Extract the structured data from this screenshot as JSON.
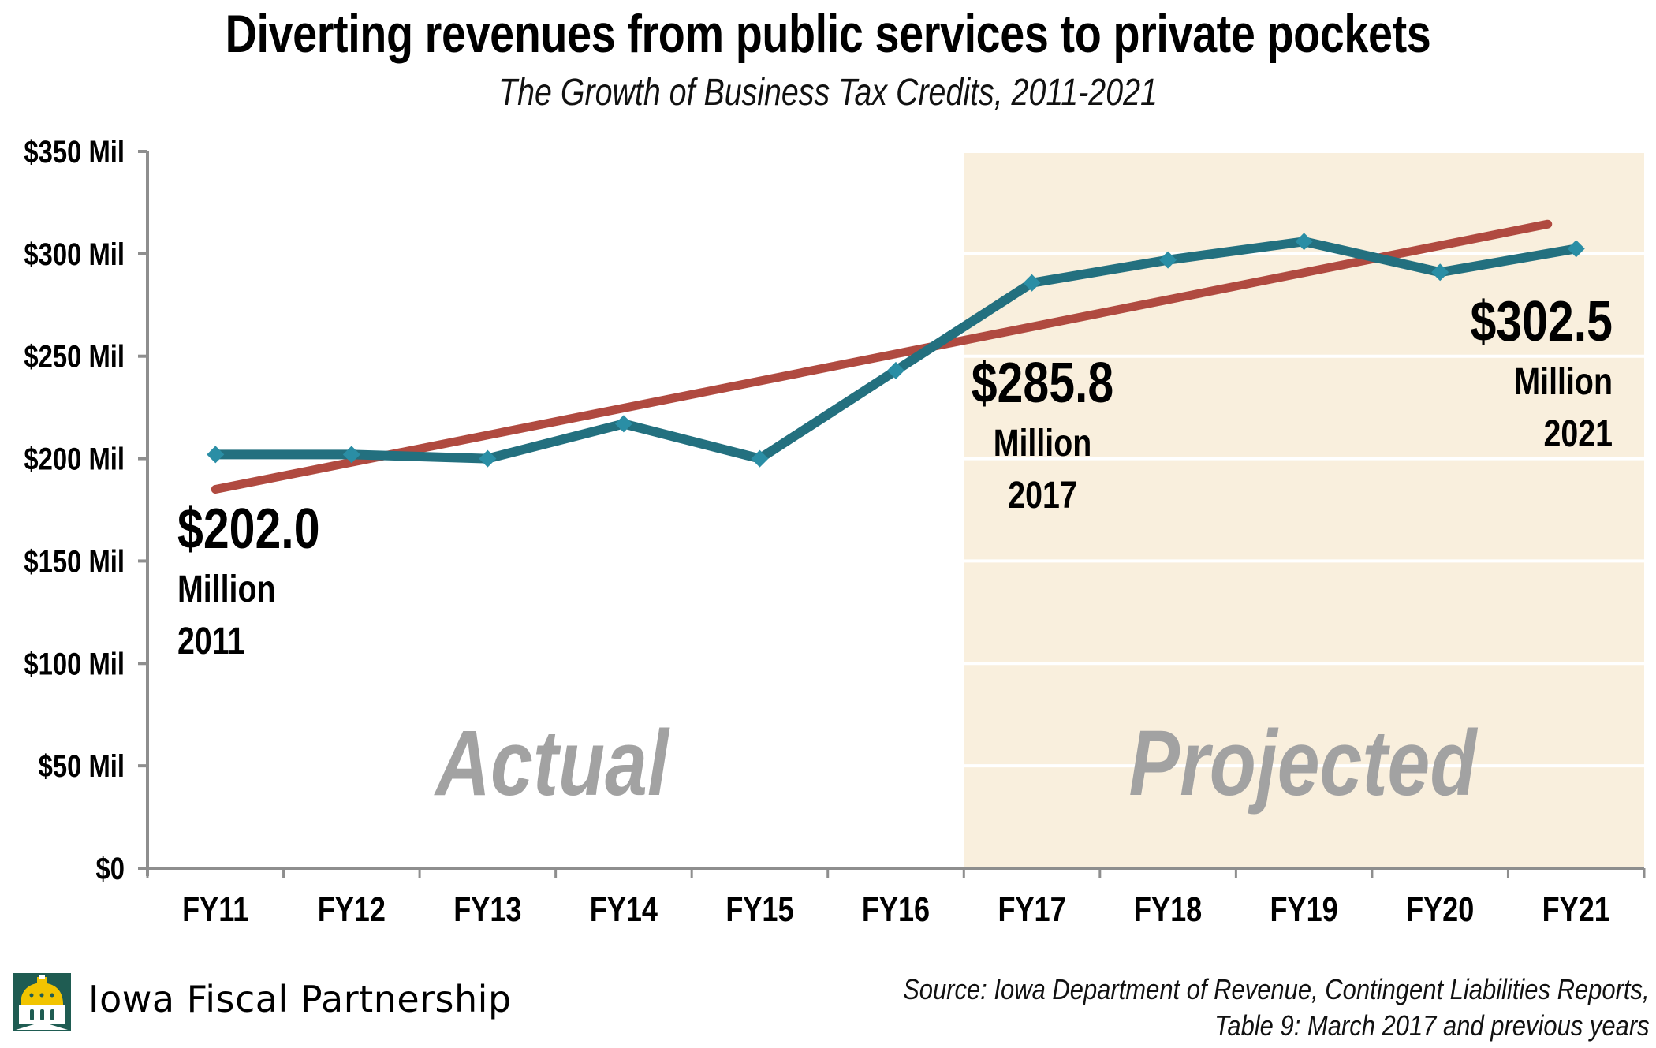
{
  "header": {
    "title": "Diverting revenues from public services to private pockets",
    "subtitle": "The Growth of Business Tax Credits, 2011-2021"
  },
  "footer": {
    "logo_icon": "capitol-dome-icon",
    "organization": "Iowa Fiscal Partnership",
    "source_line1": "Source: Iowa Department of Revenue, Contingent Liabilities Reports,",
    "source_line2": "Table 9: March 2017 and previous years"
  },
  "colors": {
    "series_line": "#23707f",
    "series_marker": "#2a8ea5",
    "trend_line": "#b04a40",
    "projected_bg": "#f9efdd",
    "axis": "#8e8e8e",
    "region_label": "#a2a2a2"
  },
  "chart_data": {
    "type": "line",
    "title": "Diverting revenues from public services to private pockets",
    "subtitle": "The Growth of Business Tax Credits, 2011-2021",
    "xlabel": "",
    "ylabel": "",
    "categories": [
      "FY11",
      "FY12",
      "FY13",
      "FY14",
      "FY15",
      "FY16",
      "FY17",
      "FY18",
      "FY19",
      "FY20",
      "FY21"
    ],
    "series": [
      {
        "name": "Business tax credits",
        "values": [
          202.0,
          202.0,
          200.0,
          217.0,
          200.0,
          243.0,
          285.8,
          297.0,
          306.0,
          291.0,
          302.5
        ],
        "marker": "diamond"
      },
      {
        "name": "Linear trend",
        "values": [
          185.0,
          198.0,
          211.0,
          224.0,
          237.0,
          250.0,
          263.0,
          276.0,
          289.0,
          302.0,
          314.5
        ],
        "style": "trendline"
      }
    ],
    "ylim": [
      0,
      350
    ],
    "yticks": [
      0,
      50,
      100,
      150,
      200,
      250,
      300,
      350
    ],
    "ytick_labels": [
      "$0",
      "$50 Mil",
      "$100 Mil",
      "$150 Mil",
      "$200 Mil",
      "$250 Mil",
      "$300 Mil",
      "$350 Mil"
    ],
    "grid": "horizontal gridlines visible only in projected region",
    "legend": "none",
    "regions": [
      {
        "label": "Actual",
        "from": "FY11",
        "to": "FY16"
      },
      {
        "label": "Projected",
        "from": "FY17",
        "to": "FY21",
        "shaded": true
      }
    ],
    "annotations": [
      {
        "category": "FY11",
        "value_text": "$202.0",
        "unit_text": "Million",
        "year_text": "2011"
      },
      {
        "category": "FY17",
        "value_text": "$285.8",
        "unit_text": "Million",
        "year_text": "2017"
      },
      {
        "category": "FY21",
        "value_text": "$302.5",
        "unit_text": "Million",
        "year_text": "2021"
      }
    ]
  }
}
